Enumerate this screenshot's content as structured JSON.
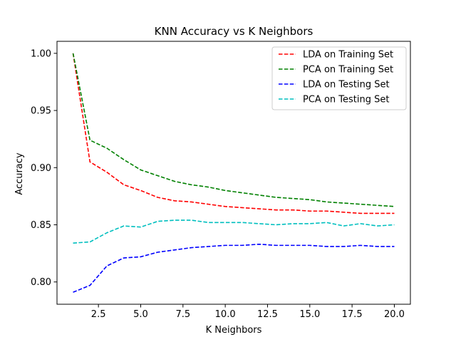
{
  "chart_data": {
    "type": "line",
    "title": "KNN Accuracy vs K Neighbors",
    "xlabel": "K Neighbors",
    "ylabel": "Accuracy",
    "xlim": [
      0.05,
      20.95
    ],
    "ylim": [
      0.7805,
      1.0105
    ],
    "xticks": [
      2.5,
      5.0,
      7.5,
      10.0,
      12.5,
      15.0,
      17.5,
      20.0
    ],
    "xtick_labels": [
      "2.5",
      "5.0",
      "7.5",
      "10.0",
      "12.5",
      "15.0",
      "17.5",
      "20.0"
    ],
    "yticks": [
      0.8,
      0.85,
      0.9,
      0.95,
      1.0
    ],
    "ytick_labels": [
      "0.80",
      "0.85",
      "0.90",
      "0.95",
      "1.00"
    ],
    "grid": false,
    "legend_position": "top-right",
    "x": [
      1,
      2,
      3,
      4,
      5,
      6,
      7,
      8,
      9,
      10,
      11,
      12,
      13,
      14,
      15,
      16,
      17,
      18,
      19,
      20
    ],
    "series": [
      {
        "name": "LDA on Training Set",
        "color": "#ff0000",
        "style": "dashed",
        "values": [
          1.0,
          0.905,
          0.896,
          0.885,
          0.88,
          0.874,
          0.871,
          0.87,
          0.868,
          0.866,
          0.865,
          0.864,
          0.863,
          0.863,
          0.862,
          0.862,
          0.861,
          0.86,
          0.86,
          0.86
        ]
      },
      {
        "name": "PCA on Training Set",
        "color": "#008000",
        "style": "dashed",
        "values": [
          1.0,
          0.924,
          0.917,
          0.907,
          0.898,
          0.893,
          0.888,
          0.885,
          0.883,
          0.88,
          0.878,
          0.876,
          0.874,
          0.873,
          0.872,
          0.87,
          0.869,
          0.868,
          0.867,
          0.866
        ]
      },
      {
        "name": "LDA on Testing Set",
        "color": "#0000ff",
        "style": "dashed",
        "values": [
          0.791,
          0.797,
          0.814,
          0.821,
          0.822,
          0.826,
          0.828,
          0.83,
          0.831,
          0.832,
          0.832,
          0.833,
          0.832,
          0.832,
          0.832,
          0.831,
          0.831,
          0.832,
          0.831,
          0.831
        ]
      },
      {
        "name": "PCA on Testing Set",
        "color": "#00bfbf",
        "style": "dashed",
        "values": [
          0.834,
          0.835,
          0.843,
          0.849,
          0.848,
          0.853,
          0.854,
          0.854,
          0.852,
          0.852,
          0.852,
          0.851,
          0.85,
          0.851,
          0.851,
          0.852,
          0.849,
          0.851,
          0.849,
          0.85
        ]
      }
    ]
  }
}
